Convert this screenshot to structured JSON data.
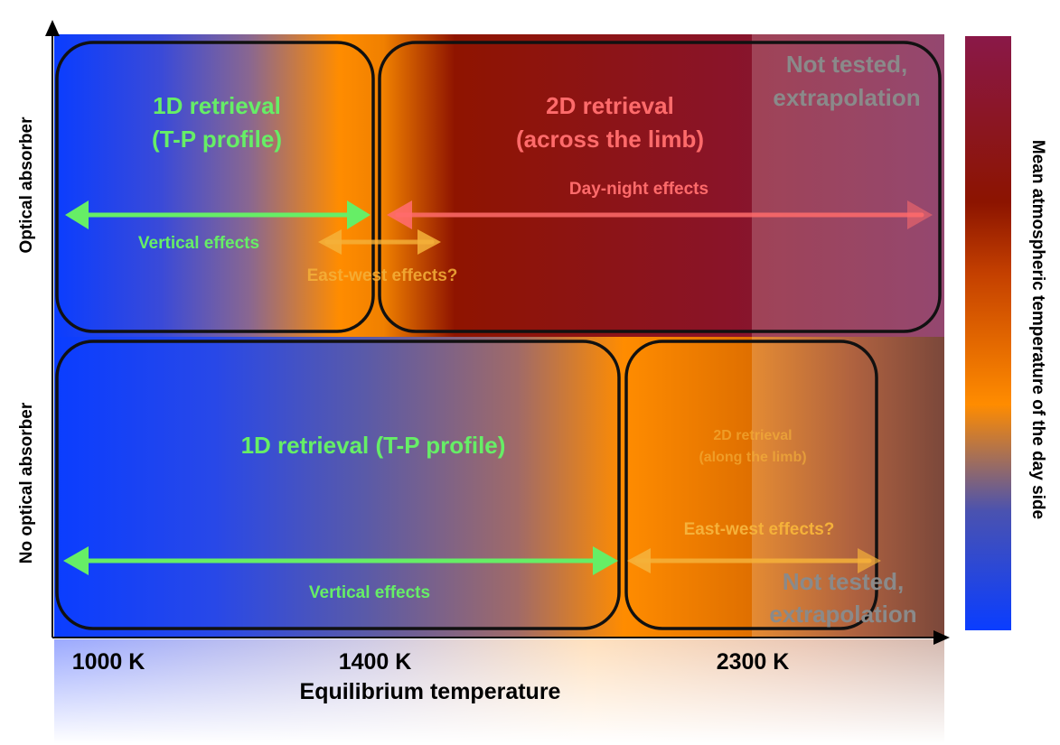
{
  "axes": {
    "x_label": "Equilibrium temperature",
    "x_ticks": [
      "1000 K",
      "1400 K",
      "2300 K"
    ],
    "y_labels": [
      "Optical absorber",
      "No optical absorber"
    ]
  },
  "colorbar": {
    "label": "Mean atmospheric temperature of the day side",
    "colors": [
      "#0a3dff",
      "#ff8a00",
      "#8c1400",
      "#7a1a4c"
    ]
  },
  "top_row": {
    "left_box_title": [
      "1D retrieval",
      "(T-P profile)"
    ],
    "right_box_title": [
      "2D retrieval",
      "(across the limb)"
    ],
    "not_tested": [
      "Not tested,",
      "extrapolation"
    ],
    "vertical_effects": "Vertical effects",
    "day_night_effects": "Day-night effects",
    "east_west_effects": "East-west effects?"
  },
  "bottom_row": {
    "left_box_title": "1D retrieval (T-P profile)",
    "right_box_title": [
      "2D retrieval",
      "(along the limb)"
    ],
    "not_tested": [
      "Not tested,",
      "extrapolation"
    ],
    "vertical_effects": "Vertical effects",
    "east_west_effects": "East-west effects?"
  },
  "colors": {
    "green": "#66ee66",
    "red": "#ff6b6b",
    "orange_text": "#f5b13a",
    "gray_text": "#8a8a8a"
  }
}
